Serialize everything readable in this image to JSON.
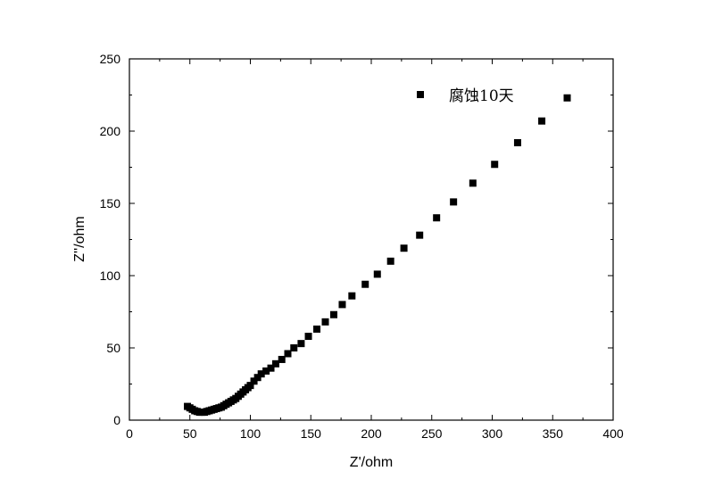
{
  "chart_data": {
    "type": "scatter",
    "xlabel": "Z'/ohm",
    "ylabel": "Z''/ohm",
    "xlim": [
      0,
      400
    ],
    "ylim": [
      0,
      250
    ],
    "xticks": [
      0,
      50,
      100,
      150,
      200,
      250,
      300,
      350,
      400
    ],
    "yticks": [
      0,
      50,
      100,
      150,
      200,
      250
    ],
    "grid": false,
    "legend_position": "top-right",
    "marker_color": "#000000",
    "series": [
      {
        "name": "腐蚀10天",
        "marker": "square",
        "x": [
          48,
          50,
          52,
          54,
          56,
          58,
          60,
          62,
          64,
          66,
          68,
          70,
          72,
          74,
          76,
          78,
          80,
          82,
          84,
          86,
          88,
          90,
          92,
          94,
          96,
          98,
          100,
          103,
          106,
          109,
          113,
          117,
          121,
          126,
          131,
          136,
          142,
          148,
          155,
          162,
          169,
          176,
          184,
          195,
          205,
          216,
          227,
          240,
          254,
          268,
          284,
          302,
          321,
          341,
          362
        ],
        "y": [
          9.5,
          8.5,
          7.5,
          6.5,
          6,
          5.5,
          5.5,
          5.5,
          6,
          6.5,
          7,
          7.5,
          8,
          8.5,
          9,
          10,
          11,
          12,
          13,
          14,
          15,
          16.5,
          18,
          19.5,
          21,
          22.5,
          24,
          27,
          29.5,
          32,
          34,
          36,
          39,
          42,
          46,
          50,
          53,
          58,
          63,
          68,
          73,
          80,
          86,
          94,
          101,
          110,
          119,
          128,
          140,
          151,
          164,
          177,
          192,
          207,
          223
        ]
      }
    ]
  }
}
